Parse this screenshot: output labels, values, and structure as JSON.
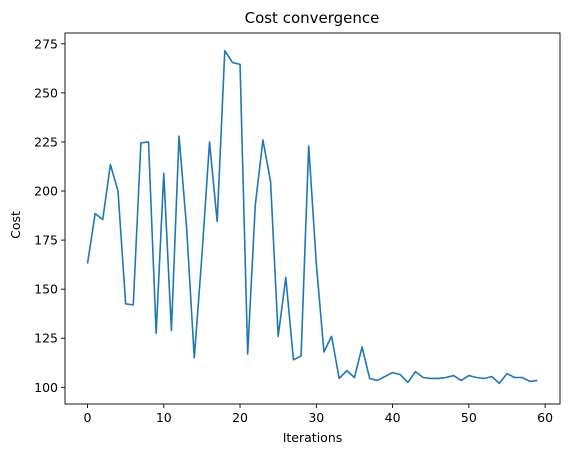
{
  "chart_data": {
    "type": "line",
    "title": "Cost convergence",
    "xlabel": "Iterations",
    "ylabel": "Cost",
    "xlim": [
      -2.95,
      61.95
    ],
    "ylim": [
      91.5,
      280.5
    ],
    "xticks": [
      0,
      10,
      20,
      30,
      40,
      50,
      60
    ],
    "yticks": [
      100,
      125,
      150,
      175,
      200,
      225,
      250,
      275
    ],
    "grid": false,
    "legend": "none",
    "series": [
      {
        "color": "#1f77b4",
        "x": [
          0,
          1,
          2,
          3,
          4,
          5,
          6,
          7,
          8,
          9,
          10,
          11,
          12,
          13,
          14,
          15,
          16,
          17,
          18,
          19,
          20,
          21,
          22,
          23,
          24,
          25,
          26,
          27,
          28,
          29,
          30,
          31,
          32,
          33,
          34,
          35,
          36,
          37,
          38,
          39,
          40,
          41,
          42,
          43,
          44,
          45,
          46,
          47,
          48,
          49,
          50,
          51,
          52,
          53,
          54,
          55,
          56,
          57,
          58,
          59
        ],
        "values": [
          163,
          188.5,
          185.5,
          213.5,
          200,
          142.5,
          142,
          224.5,
          225,
          127.5,
          209,
          129,
          228,
          181,
          115,
          167,
          225,
          184.5,
          271.5,
          265.5,
          264.5,
          117,
          193,
          226,
          205,
          126,
          156,
          114,
          116,
          223,
          163,
          118,
          126,
          104.5,
          108.5,
          105,
          120.5,
          104.5,
          103.5,
          105.5,
          107.5,
          106.5,
          102.5,
          108,
          105,
          104.5,
          104.5,
          105,
          106,
          103.5,
          106,
          105,
          104.5,
          105.5,
          102,
          107,
          105,
          105,
          103,
          103.5
        ]
      }
    ]
  }
}
